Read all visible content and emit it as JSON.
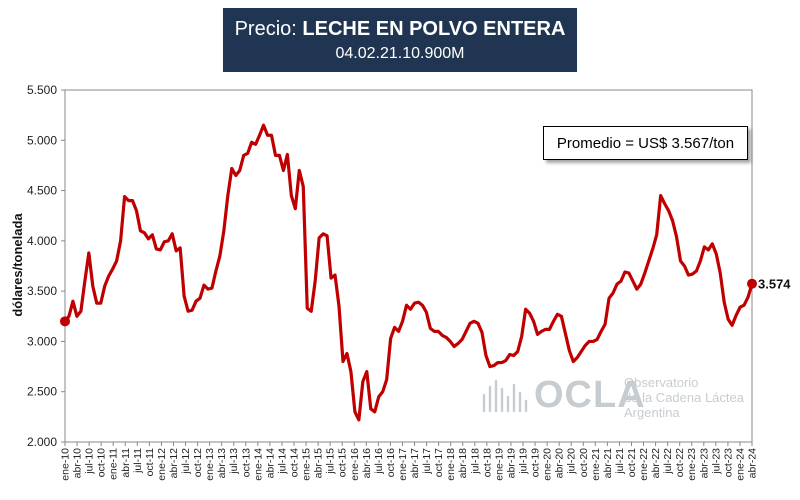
{
  "title": {
    "prefix": "Precio: ",
    "product": "LECHE EN POLVO ENTERA",
    "code": "04.02.21.10.900M"
  },
  "average_label": "Promedio = US$ 3.567/ton",
  "end_label": "3.574",
  "logo": {
    "name": "OCLA",
    "org_line1": "Observatorio",
    "org_line2": "de la Cadena Láctea",
    "org_line3": "Argentina"
  },
  "colors": {
    "line": "#c00000",
    "title_bg": "#1f3551"
  },
  "chart_data": {
    "type": "line",
    "title": "Precio: LECHE EN POLVO ENTERA",
    "subtitle": "04.02.21.10.900M",
    "ylabel": "dólares/tonelada",
    "xlabel": "",
    "ylim": [
      2000,
      5500
    ],
    "yticks": [
      "2.000",
      "2.500",
      "3.000",
      "3.500",
      "4.000",
      "4.500",
      "5.000",
      "5.500"
    ],
    "grid": false,
    "x_start": "ene-10",
    "x_end": "abr-24",
    "xtick_labels": [
      "ene-10",
      "abr-10",
      "jul-10",
      "oct-10",
      "ene-11",
      "abr-11",
      "jul-11",
      "oct-11",
      "ene-12",
      "abr-12",
      "jul-12",
      "oct-12",
      "ene-13",
      "abr-13",
      "jul-13",
      "oct-13",
      "ene-14",
      "abr-14",
      "jul-14",
      "oct-14",
      "ene-15",
      "abr-15",
      "jul-15",
      "oct-15",
      "ene-16",
      "abr-16",
      "jul-16",
      "oct-16",
      "ene-17",
      "abr-17",
      "jul-17",
      "oct-17",
      "ene-18",
      "abr-18",
      "jul-18",
      "oct-18",
      "ene-19",
      "abr-19",
      "jul-19",
      "oct-19",
      "ene-20",
      "abr-20",
      "jul-20",
      "oct-20",
      "ene-21",
      "abr-21",
      "jul-21",
      "oct-21",
      "ene-22",
      "abr-22",
      "jul-22",
      "oct-22",
      "ene-23",
      "abr-23",
      "jul-23",
      "oct-23",
      "ene-24",
      "abr-24"
    ],
    "series": [
      {
        "values": [
          3200,
          3250,
          3400,
          3250,
          3300,
          3600,
          3880,
          3550,
          3380,
          3380,
          3550,
          3650,
          3720,
          3800,
          4000,
          4440,
          4400,
          4400,
          4300,
          4100,
          4080,
          4020,
          4060,
          3920,
          3910,
          3990,
          4000,
          4070,
          3900,
          3930,
          3450,
          3300,
          3310,
          3400,
          3430,
          3560,
          3520,
          3530,
          3700,
          3850,
          4100,
          4450,
          4720,
          4650,
          4700,
          4850,
          4870,
          4980,
          4960,
          5050,
          5150,
          5050,
          5050,
          4850,
          4850,
          4700,
          4860,
          4450,
          4320,
          4700,
          4540,
          3330,
          3300,
          3600,
          4030,
          4070,
          4050,
          3630,
          3660,
          3350,
          2800,
          2880,
          2700,
          2300,
          2220,
          2600,
          2700,
          2330,
          2300,
          2450,
          2500,
          2620,
          3030,
          3140,
          3100,
          3200,
          3360,
          3320,
          3380,
          3390,
          3360,
          3290,
          3130,
          3100,
          3100,
          3060,
          3040,
          3000,
          2950,
          2980,
          3020,
          3100,
          3180,
          3200,
          3180,
          3090,
          2860,
          2750,
          2760,
          2790,
          2790,
          2810,
          2870,
          2860,
          2900,
          3050,
          3320,
          3280,
          3200,
          3070,
          3100,
          3120,
          3120,
          3200,
          3270,
          3250,
          3080,
          2910,
          2800,
          2840,
          2900,
          2960,
          3000,
          3000,
          3020,
          3100,
          3170,
          3430,
          3480,
          3570,
          3600,
          3690,
          3680,
          3600,
          3520,
          3570,
          3680,
          3800,
          3920,
          4060,
          4450,
          4370,
          4300,
          4200,
          4040,
          3800,
          3750,
          3660,
          3670,
          3700,
          3800,
          3940,
          3910,
          3970,
          3870,
          3680,
          3390,
          3220,
          3160,
          3260,
          3340,
          3360,
          3440,
          3574
        ]
      }
    ]
  }
}
